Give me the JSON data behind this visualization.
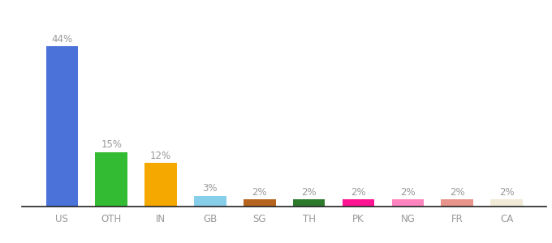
{
  "categories": [
    "US",
    "OTH",
    "IN",
    "GB",
    "SG",
    "TH",
    "PK",
    "NG",
    "FR",
    "CA"
  ],
  "values": [
    44,
    15,
    12,
    3,
    2,
    2,
    2,
    2,
    2,
    2
  ],
  "labels": [
    "44%",
    "15%",
    "12%",
    "3%",
    "2%",
    "2%",
    "2%",
    "2%",
    "2%",
    "2%"
  ],
  "bar_colors": [
    "#4a72d9",
    "#33bb33",
    "#f5a800",
    "#87ceeb",
    "#b5651d",
    "#2d7a2d",
    "#ff1493",
    "#ff85c0",
    "#e8948a",
    "#f0ead6"
  ],
  "ylim": [
    0,
    52
  ],
  "background_color": "#ffffff",
  "label_color": "#999999",
  "label_fontsize": 8.5,
  "tick_fontsize": 8.5,
  "figsize": [
    6.8,
    3.0
  ],
  "dpi": 100,
  "bottom_line_color": "#222222"
}
